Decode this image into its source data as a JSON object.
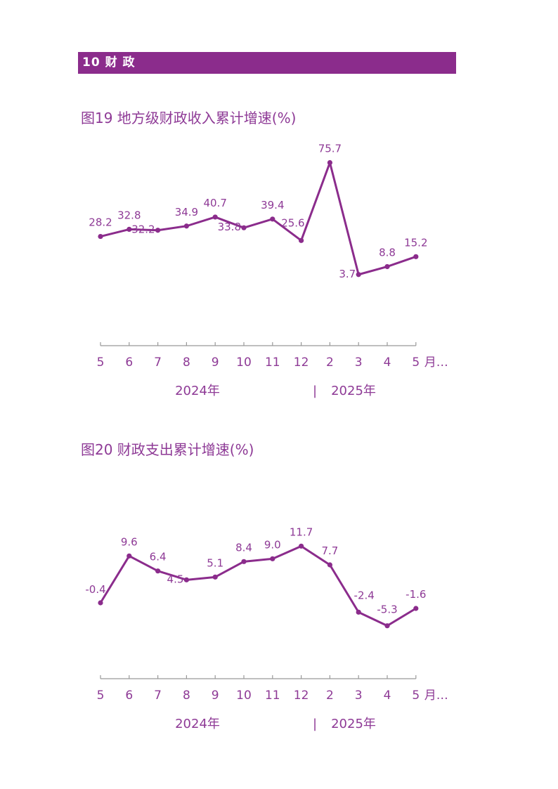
{
  "section": {
    "label": "10  财  政"
  },
  "chart_data": [
    {
      "id": "fig19",
      "type": "line",
      "title": "图19  地方级财政收入累计增速(%)",
      "categories": [
        "5",
        "6",
        "7",
        "8",
        "9",
        "10",
        "11",
        "12",
        "2",
        "3",
        "4",
        "5"
      ],
      "values": [
        28.2,
        32.8,
        32.2,
        34.9,
        40.7,
        33.8,
        39.4,
        25.6,
        75.7,
        3.7,
        8.8,
        15.2
      ],
      "axis_unit": "月…",
      "year_labels": [
        "2024年",
        "|",
        "2025年"
      ],
      "color": "#8b2c8c",
      "ylim": [
        -5,
        80
      ]
    },
    {
      "id": "fig20",
      "type": "line",
      "title": "图20  财政支出累计增速(%)",
      "categories": [
        "5",
        "6",
        "7",
        "8",
        "9",
        "10",
        "11",
        "12",
        "2",
        "3",
        "4",
        "5"
      ],
      "values": [
        -0.4,
        9.6,
        6.4,
        4.5,
        5.1,
        8.4,
        9.0,
        11.7,
        7.7,
        -2.4,
        -5.3,
        -1.6
      ],
      "axis_unit": "月…",
      "year_labels": [
        "2024年",
        "|",
        "2025年"
      ],
      "color": "#8b2c8c",
      "ylim": [
        -10,
        14
      ]
    }
  ]
}
